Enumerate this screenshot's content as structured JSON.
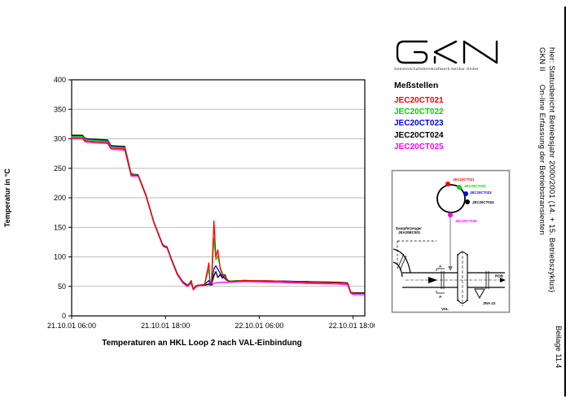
{
  "logo": {
    "name": "GKN",
    "subtitle": "Gemeinschaftskernkraftwerk Neckar GmbH"
  },
  "legend": {
    "title": "Meßstellen",
    "items": [
      {
        "label": "JEC20CT021",
        "color": "#ff0000"
      },
      {
        "label": "JEC20CT022",
        "color": "#00d400"
      },
      {
        "label": "JEC20CT023",
        "color": "#0000ee"
      },
      {
        "label": "JEC20CT024",
        "color": "#000000"
      },
      {
        "label": "JEC20CT025",
        "color": "#ff00ff"
      }
    ]
  },
  "chart_data": {
    "type": "line",
    "title": "Temperaturen an HKL Loop 2 nach VAL-Einbindung",
    "xlabel": "",
    "ylabel": "Temperatur in °C",
    "ylim": [
      0,
      400
    ],
    "ytick_step": 50,
    "yticks": [
      0,
      50,
      100,
      150,
      200,
      250,
      300,
      350,
      400
    ],
    "xlim_hours": [
      0,
      37.5
    ],
    "xticks": [
      {
        "hours": 0,
        "label": "21.10.01 06:00"
      },
      {
        "hours": 12,
        "label": "21.10.01 18:00"
      },
      {
        "hours": 24,
        "label": "22.10.01 06:00"
      },
      {
        "hours": 36,
        "label": "22.10.01 18:00"
      }
    ],
    "grid": "horizontal",
    "legend_position": "right-panel",
    "x_hours": [
      0,
      1.4,
      1.7,
      2.1,
      4.6,
      5.0,
      5.3,
      6.8,
      7.6,
      7.9,
      8.5,
      9.5,
      10.5,
      11.6,
      11.8,
      12.2,
      12.8,
      13.5,
      14.2,
      14.8,
      15.3,
      15.55,
      15.9,
      16.2,
      17.0,
      17.55,
      17.7,
      17.9,
      18.2,
      18.45,
      18.7,
      19.0,
      19.3,
      19.6,
      19.85,
      20.1,
      20.4,
      22,
      26,
      30,
      34,
      35.3,
      35.7,
      36.1,
      37.4
    ],
    "series": [
      {
        "name": "JEC20CT021",
        "color": "#ff0000",
        "values": [
          302,
          302,
          297,
          296,
          294,
          285,
          284,
          283,
          239,
          238,
          238,
          204,
          159,
          121,
          118,
          116,
          94,
          71,
          57,
          51,
          60,
          45,
          50,
          52,
          53,
          90,
          55,
          60,
          161,
          100,
          112,
          80,
          70,
          66,
          62,
          59,
          58,
          60,
          59,
          57,
          56,
          55,
          40,
          38,
          38
        ]
      },
      {
        "name": "JEC20CT022",
        "color": "#00d400",
        "values": [
          304,
          304,
          299,
          298,
          296,
          287,
          286,
          285,
          240,
          239,
          238,
          204,
          160,
          121,
          118,
          116,
          94,
          71,
          57,
          51,
          58,
          46,
          51,
          52,
          53,
          80,
          54,
          57,
          132,
          95,
          101,
          82,
          72,
          67,
          62,
          60,
          59,
          60,
          59,
          57,
          56,
          55,
          40,
          38,
          38
        ]
      },
      {
        "name": "JEC20CT023",
        "color": "#0000ee",
        "values": [
          305,
          305,
          300,
          299,
          297,
          288,
          287,
          286,
          240,
          239,
          239,
          205,
          160,
          122,
          119,
          117,
          95,
          72,
          58,
          52,
          57,
          46,
          51,
          52,
          53,
          60,
          53,
          54,
          80,
          85,
          79,
          72,
          67,
          63,
          60,
          59,
          59,
          60,
          59,
          58,
          56,
          55,
          40,
          38,
          38
        ]
      },
      {
        "name": "JEC20CT024",
        "color": "#000000",
        "values": [
          306,
          306,
          301,
          300,
          298,
          289,
          288,
          287,
          241,
          240,
          239,
          205,
          160,
          122,
          119,
          117,
          95,
          72,
          58,
          52,
          57,
          46,
          51,
          52,
          52,
          54,
          53,
          53,
          68,
          75,
          65,
          70,
          64,
          70,
          62,
          59,
          59,
          60,
          59,
          58,
          57,
          56,
          40,
          39,
          39
        ]
      },
      {
        "name": "JEC20CT025",
        "color": "#ff00ff",
        "values": [
          300,
          300,
          295,
          294,
          292,
          283,
          282,
          281,
          237,
          237,
          237,
          203,
          158,
          120,
          117,
          115,
          93,
          70,
          56,
          50,
          55,
          44,
          49,
          51,
          52,
          53,
          52,
          52,
          55,
          56,
          56,
          57,
          57,
          57,
          57,
          57,
          57,
          58,
          57,
          55,
          54,
          53,
          38,
          36,
          36
        ]
      }
    ]
  },
  "diagram": {
    "labels": {
      "dampferzeuger1": "Dampferzeuger",
      "dampferzeuger2": "JEA20BC001",
      "section_a_top": "A",
      "section_a_bottom": "A",
      "rdb": "RDB",
      "jna": "JNA 22",
      "val": "VAL"
    }
  },
  "titleblock": {
    "plant": "GKN II",
    "line1": "On-line Erfassung der Betriebstransienten",
    "line2": "hier: Statusbericht Betriebsjahr 2000/2001 (14. + 15. Betriebszyklus)",
    "beilage": "Beilage 11.4"
  }
}
